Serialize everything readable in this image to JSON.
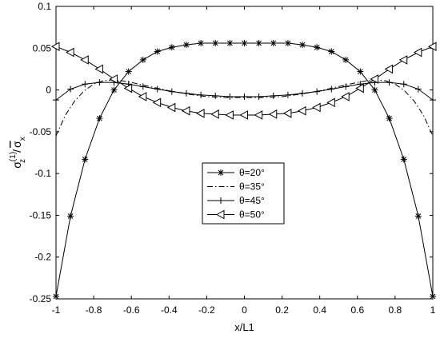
{
  "chart_data": {
    "type": "line",
    "title": "",
    "xlabel": "x/L1",
    "ylabel_parts": {
      "main": "σ",
      "sup": "(1)",
      "sub": "z",
      "slash": "/",
      "denominator": "σ",
      "denominator_sub": "x"
    },
    "xlim": [
      -1,
      1
    ],
    "ylim": [
      -0.25,
      0.1
    ],
    "xticks": [
      -1,
      -0.8,
      -0.6,
      -0.4,
      -0.2,
      0,
      0.2,
      0.4,
      0.6,
      0.8,
      1
    ],
    "xtick_labels": [
      "-1",
      "-0.8",
      "-0.6",
      "-0.4",
      "-0.2",
      "0",
      "0.2",
      "0.4",
      "0.6",
      "0.8",
      "1"
    ],
    "yticks": [
      -0.25,
      -0.2,
      -0.15,
      -0.1,
      -0.05,
      0,
      0.05,
      0.1
    ],
    "ytick_labels": [
      "-0.25",
      "-0.2",
      "-0.15",
      "-0.1",
      "-0.05",
      "0",
      "0.05",
      "0.1"
    ],
    "grid": false,
    "legend_position": "center",
    "series": [
      {
        "name": "θ=20°",
        "line_style": "solid",
        "marker": "asterisk",
        "x": [
          -1,
          -0.923,
          -0.846,
          -0.769,
          -0.692,
          -0.615,
          -0.538,
          -0.462,
          -0.385,
          -0.308,
          -0.231,
          -0.154,
          -0.077,
          0,
          0.077,
          0.154,
          0.231,
          0.308,
          0.385,
          0.462,
          0.538,
          0.615,
          0.692,
          0.769,
          0.846,
          0.923,
          1
        ],
        "y": [
          -0.247,
          -0.151,
          -0.083,
          -0.034,
          0.0,
          0.022,
          0.036,
          0.046,
          0.051,
          0.054,
          0.056,
          0.056,
          0.056,
          0.056,
          0.056,
          0.056,
          0.056,
          0.054,
          0.051,
          0.046,
          0.036,
          0.022,
          0.0,
          -0.034,
          -0.083,
          -0.151,
          -0.247
        ]
      },
      {
        "name": "θ=35°",
        "line_style": "dashdot",
        "marker": "none",
        "x": [
          -1,
          -0.95,
          -0.9,
          -0.85,
          -0.8,
          -0.75,
          -0.7,
          -0.65,
          -0.6,
          -0.5,
          -0.4,
          -0.3,
          -0.2,
          -0.1,
          0,
          0.1,
          0.2,
          0.3,
          0.4,
          0.5,
          0.6,
          0.65,
          0.7,
          0.75,
          0.8,
          0.85,
          0.9,
          0.95,
          1
        ],
        "y": [
          -0.055,
          -0.03,
          -0.013,
          -0.001,
          0.007,
          0.011,
          0.012,
          0.011,
          0.009,
          0.004,
          -0.001,
          -0.005,
          -0.008,
          -0.009,
          -0.009,
          -0.009,
          -0.008,
          -0.005,
          -0.001,
          0.004,
          0.009,
          0.011,
          0.012,
          0.011,
          0.007,
          -0.001,
          -0.013,
          -0.03,
          -0.055
        ]
      },
      {
        "name": "θ=45°",
        "line_style": "solid",
        "marker": "plus",
        "x": [
          -1,
          -0.923,
          -0.846,
          -0.769,
          -0.692,
          -0.615,
          -0.538,
          -0.462,
          -0.385,
          -0.308,
          -0.231,
          -0.154,
          -0.077,
          0,
          0.077,
          0.154,
          0.231,
          0.308,
          0.385,
          0.462,
          0.538,
          0.615,
          0.692,
          0.769,
          0.846,
          0.923,
          1
        ],
        "y": [
          -0.012,
          0.001,
          0.007,
          0.009,
          0.009,
          0.007,
          0.004,
          0.001,
          -0.002,
          -0.004,
          -0.006,
          -0.007,
          -0.008,
          -0.008,
          -0.008,
          -0.007,
          -0.006,
          -0.004,
          -0.002,
          0.001,
          0.004,
          0.007,
          0.009,
          0.009,
          0.007,
          0.001,
          -0.012
        ]
      },
      {
        "name": "θ=50°",
        "line_style": "solid",
        "marker": "triangle-left",
        "x": [
          -1,
          -0.923,
          -0.846,
          -0.769,
          -0.692,
          -0.615,
          -0.538,
          -0.462,
          -0.385,
          -0.308,
          -0.231,
          -0.154,
          -0.077,
          0,
          0.077,
          0.154,
          0.231,
          0.308,
          0.385,
          0.462,
          0.538,
          0.615,
          0.692,
          0.769,
          0.846,
          0.923,
          1
        ],
        "y": [
          0.052,
          0.045,
          0.036,
          0.025,
          0.013,
          0.002,
          -0.008,
          -0.015,
          -0.021,
          -0.025,
          -0.028,
          -0.029,
          -0.03,
          -0.03,
          -0.03,
          -0.029,
          -0.028,
          -0.025,
          -0.021,
          -0.015,
          -0.008,
          0.002,
          0.013,
          0.025,
          0.036,
          0.045,
          0.052
        ]
      }
    ]
  }
}
